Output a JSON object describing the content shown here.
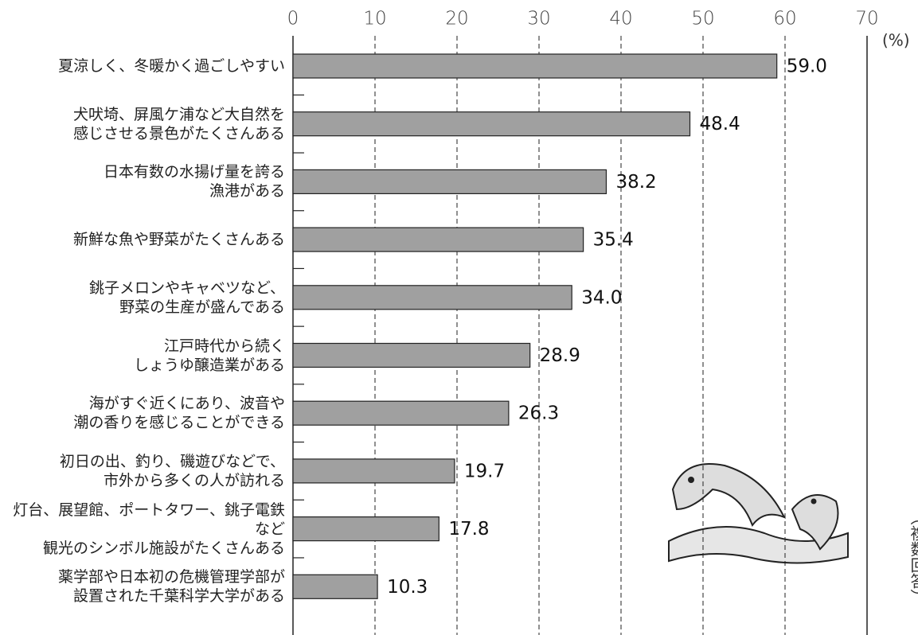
{
  "chart_data": {
    "type": "bar",
    "orientation": "horizontal",
    "categories": [
      "夏涼しく、冬暖かく過ごしやすい",
      "犬吠埼、屏風ケ浦など大自然を\n感じさせる景色がたくさんある",
      "日本有数の水揚げ量を誇る\n漁港がある",
      "新鮮な魚や野菜がたくさんある",
      "銚子メロンやキャベツなど、\n野菜の生産が盛んである",
      "江戸時代から続く\nしょうゆ醸造業がある",
      "海がすぐ近くにあり、波音や\n潮の香りを感じることができる",
      "初日の出、釣り、磯遊びなどで、\n市外から多くの人が訪れる",
      "灯台、展望館、ポートタワー、銚子電鉄など\n観光のシンボル施設がたくさんある",
      "薬学部や日本初の危機管理学部が\n設置された千葉科学大学がある"
    ],
    "values": [
      59.0,
      48.4,
      38.2,
      35.4,
      34.0,
      28.9,
      26.3,
      19.7,
      17.8,
      10.3
    ],
    "value_labels": [
      "59.0",
      "48.4",
      "38.2",
      "35.4",
      "34.0",
      "28.9",
      "26.3",
      "19.7",
      "17.8",
      "10.3"
    ],
    "color": "#a0a0a0",
    "xlim": [
      0,
      70
    ],
    "xticks": [
      0,
      10,
      20,
      30,
      40,
      50,
      60,
      70
    ],
    "x_unit": "(%)",
    "note": "（複数回答）",
    "grid": true
  }
}
